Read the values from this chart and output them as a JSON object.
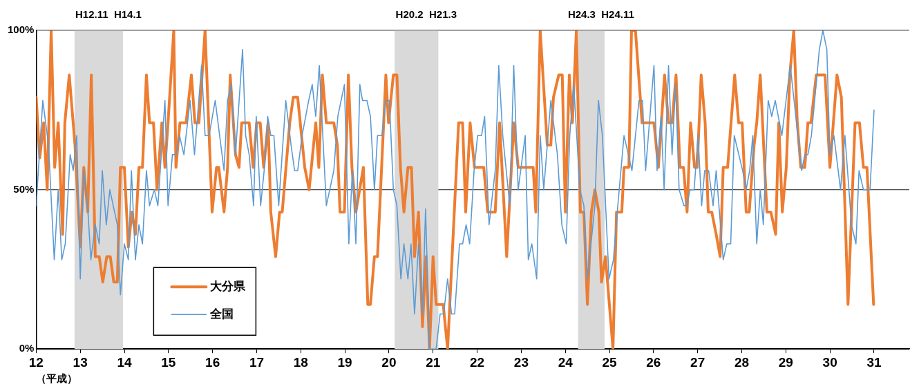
{
  "chart_data": {
    "type": "line",
    "xlabel": "（平成）",
    "xlim": [
      12,
      31.8
    ],
    "xticks": [
      12,
      13,
      14,
      15,
      16,
      17,
      18,
      19,
      20,
      21,
      22,
      23,
      24,
      25,
      26,
      27,
      28,
      29,
      30,
      31
    ],
    "ylim": [
      0,
      100
    ],
    "yticks": [
      {
        "value": 0,
        "label": "0%"
      },
      {
        "value": 50,
        "label": "50%"
      },
      {
        "value": 100,
        "label": "100%"
      }
    ],
    "grid": "y",
    "legend": "bottom left",
    "marker": "none",
    "line_style": "solid",
    "bands": [
      {
        "axis": "x",
        "from": 12.87,
        "to": 13.97,
        "color": "#d9d9d9",
        "label": "H12.11  H14.1"
      },
      {
        "axis": "x",
        "from": 20.13,
        "to": 21.12,
        "color": "#d9d9d9",
        "label": "H20.2  H21.3"
      },
      {
        "axis": "x",
        "from": 24.29,
        "to": 24.89,
        "color": "#d9d9d9",
        "label": "H24.3  H24.11"
      }
    ],
    "series": [
      {
        "name": "大分県",
        "color": "#ed7d31",
        "x": [
          12.0,
          12.08,
          12.17,
          12.25,
          12.34,
          12.42,
          12.5,
          12.6,
          12.65,
          12.75,
          12.88,
          13.0,
          13.08,
          13.17,
          13.25,
          13.34,
          13.43,
          13.51,
          13.6,
          13.68,
          13.76,
          13.84,
          13.91,
          14.0,
          14.09,
          14.17,
          14.25,
          14.33,
          14.41,
          14.5,
          14.57,
          14.66,
          14.74,
          14.85,
          14.92,
          14.99,
          15.12,
          15.17,
          15.26,
          15.4,
          15.52,
          15.6,
          15.69,
          15.83,
          15.99,
          16.09,
          16.14,
          16.26,
          16.34,
          16.4,
          16.52,
          16.6,
          16.66,
          16.83,
          16.92,
          17.0,
          17.08,
          17.16,
          17.26,
          17.32,
          17.43,
          17.52,
          17.58,
          17.75,
          17.83,
          17.93,
          18.09,
          18.19,
          18.34,
          18.41,
          18.49,
          18.58,
          18.75,
          18.83,
          18.89,
          18.99,
          19.08,
          19.16,
          19.25,
          19.42,
          19.52,
          19.58,
          19.67,
          19.74,
          19.93,
          19.99,
          20.1,
          20.18,
          20.26,
          20.34,
          20.43,
          20.51,
          20.58,
          20.67,
          20.76,
          20.84,
          20.92,
          21.0,
          21.07,
          21.23,
          21.33,
          21.58,
          21.67,
          21.74,
          21.84,
          21.94,
          22.15,
          22.24,
          22.41,
          22.51,
          22.67,
          22.83,
          22.93,
          23.27,
          23.33,
          23.43,
          23.59,
          23.67,
          23.73,
          23.85,
          23.93,
          24.0,
          24.09,
          24.16,
          24.25,
          24.34,
          24.42,
          24.5,
          24.59,
          24.67,
          24.76,
          24.82,
          24.91,
          25.08,
          25.16,
          25.28,
          25.33,
          25.44,
          25.5,
          25.59,
          25.74,
          26.01,
          26.11,
          26.25,
          26.34,
          26.42,
          26.51,
          26.6,
          26.68,
          26.76,
          26.84,
          26.93,
          26.99,
          27.08,
          27.17,
          27.24,
          27.32,
          27.42,
          27.51,
          27.58,
          27.68,
          27.84,
          27.93,
          28.01,
          28.1,
          28.17,
          28.28,
          28.34,
          28.42,
          28.57,
          28.66,
          28.77,
          28.84,
          28.92,
          29.01,
          29.09,
          29.18,
          29.26,
          29.34,
          29.43,
          29.5,
          29.57,
          29.69,
          29.89,
          30.0,
          30.16,
          30.26,
          30.41,
          30.57,
          30.67,
          30.76,
          30.84,
          30.99
        ],
        "values": [
          79,
          60,
          71,
          50,
          100,
          57,
          71,
          36,
          71,
          86,
          64,
          32,
          57,
          43,
          86,
          29,
          29,
          21,
          29,
          29,
          21,
          21,
          57,
          57,
          32,
          43,
          36,
          57,
          57,
          86,
          71,
          71,
          50,
          71,
          57,
          71,
          100,
          57,
          71,
          71,
          86,
          71,
          71,
          100,
          43,
          57,
          57,
          43,
          57,
          86,
          61,
          57,
          71,
          71,
          57,
          71,
          71,
          57,
          71,
          43,
          29,
          43,
          43,
          71,
          79,
          79,
          57,
          50,
          71,
          57,
          86,
          71,
          71,
          64,
          43,
          43,
          86,
          57,
          43,
          57,
          14,
          14,
          29,
          29,
          86,
          71,
          86,
          86,
          57,
          43,
          57,
          57,
          29,
          43,
          7,
          29,
          0,
          29,
          14,
          14,
          0,
          71,
          71,
          43,
          71,
          57,
          57,
          43,
          43,
          71,
          29,
          71,
          57,
          57,
          43,
          100,
          64,
          64,
          79,
          86,
          86,
          43,
          86,
          71,
          100,
          43,
          43,
          14,
          43,
          50,
          43,
          21,
          29,
          0,
          43,
          43,
          57,
          57,
          100,
          100,
          71,
          71,
          57,
          86,
          71,
          71,
          86,
          57,
          57,
          43,
          71,
          57,
          57,
          86,
          71,
          43,
          43,
          36,
          29,
          57,
          57,
          86,
          71,
          71,
          43,
          43,
          64,
          71,
          86,
          43,
          43,
          36,
          71,
          43,
          57,
          86,
          100,
          71,
          57,
          57,
          71,
          71,
          86,
          86,
          57,
          86,
          79,
          14,
          71,
          71,
          57,
          57,
          14
        ]
      },
      {
        "name": "全国",
        "color": "#5b9bd5",
        "x": [
          12.0,
          12.15,
          12.28,
          12.41,
          12.5,
          12.58,
          12.66,
          12.77,
          12.84,
          12.92,
          13.0,
          13.08,
          13.17,
          13.24,
          13.34,
          13.43,
          13.5,
          13.59,
          13.67,
          13.84,
          13.91,
          14.0,
          14.09,
          14.16,
          14.25,
          14.33,
          14.41,
          14.5,
          14.57,
          14.68,
          14.76,
          14.92,
          14.99,
          15.09,
          15.17,
          15.25,
          15.35,
          15.49,
          15.59,
          15.75,
          15.83,
          15.92,
          16.06,
          16.26,
          16.34,
          16.42,
          16.52,
          16.68,
          16.75,
          16.83,
          16.93,
          16.99,
          17.09,
          17.17,
          17.25,
          17.32,
          17.39,
          17.5,
          17.66,
          17.78,
          17.86,
          17.93,
          18.03,
          18.18,
          18.26,
          18.34,
          18.42,
          18.5,
          18.58,
          18.75,
          18.84,
          18.99,
          19.09,
          19.17,
          19.25,
          19.34,
          19.4,
          19.5,
          19.58,
          19.67,
          19.74,
          19.84,
          19.93,
          20.01,
          20.1,
          20.18,
          20.27,
          20.34,
          20.43,
          20.5,
          20.58,
          20.67,
          20.76,
          20.83,
          20.92,
          21.07,
          21.16,
          21.24,
          21.33,
          21.42,
          21.49,
          21.6,
          21.67,
          21.75,
          21.83,
          21.93,
          22.01,
          22.1,
          22.17,
          22.27,
          22.36,
          22.41,
          22.49,
          22.58,
          22.74,
          22.83,
          22.93,
          23.09,
          23.16,
          23.24,
          23.35,
          23.43,
          23.51,
          23.67,
          23.82,
          23.92,
          24.02,
          24.1,
          24.19,
          24.33,
          24.42,
          24.5,
          24.67,
          24.75,
          24.84,
          24.99,
          25.09,
          25.19,
          25.33,
          25.51,
          25.67,
          25.75,
          25.82,
          26.01,
          26.08,
          26.17,
          26.24,
          26.34,
          26.42,
          26.5,
          26.58,
          26.69,
          26.75,
          26.83,
          26.92,
          27.01,
          27.09,
          27.16,
          27.25,
          27.35,
          27.42,
          27.58,
          27.66,
          27.75,
          27.83,
          28.02,
          28.1,
          28.18,
          28.25,
          28.34,
          28.42,
          28.49,
          28.6,
          28.68,
          28.76,
          28.91,
          29.1,
          29.36,
          29.43,
          29.5,
          29.58,
          29.76,
          29.84,
          29.93,
          30.0,
          30.09,
          30.24,
          30.34,
          30.49,
          30.59,
          30.66,
          30.76,
          30.91,
          31.0
        ],
        "values": [
          45,
          78,
          64,
          28,
          50,
          28,
          33,
          61,
          56,
          67,
          22,
          56,
          44,
          28,
          39,
          33,
          56,
          39,
          50,
          39,
          17,
          33,
          28,
          56,
          28,
          39,
          33,
          56,
          45,
          50,
          45,
          78,
          45,
          61,
          61,
          67,
          61,
          78,
          61,
          89,
          67,
          67,
          78,
          56,
          78,
          83,
          61,
          94,
          67,
          61,
          45,
          73,
          45,
          56,
          73,
          67,
          67,
          45,
          78,
          64,
          56,
          56,
          67,
          78,
          83,
          73,
          89,
          67,
          45,
          56,
          73,
          83,
          33,
          56,
          33,
          83,
          78,
          78,
          73,
          50,
          67,
          67,
          78,
          78,
          50,
          45,
          22,
          33,
          22,
          33,
          11,
          33,
          11,
          44,
          0,
          0,
          11,
          11,
          22,
          11,
          11,
          33,
          33,
          39,
          33,
          56,
          67,
          67,
          73,
          39,
          50,
          56,
          89,
          67,
          45,
          89,
          50,
          67,
          28,
          33,
          22,
          67,
          50,
          78,
          61,
          39,
          33,
          67,
          83,
          50,
          45,
          22,
          45,
          78,
          67,
          22,
          28,
          45,
          67,
          56,
          78,
          78,
          56,
          89,
          56,
          73,
          50,
          89,
          61,
          83,
          50,
          45,
          45,
          50,
          50,
          67,
          45,
          56,
          56,
          45,
          56,
          28,
          33,
          33,
          67,
          56,
          50,
          56,
          67,
          33,
          50,
          39,
          78,
          73,
          78,
          67,
          89,
          56,
          61,
          61,
          67,
          94,
          100,
          94,
          61,
          67,
          50,
          67,
          39,
          33,
          56,
          50,
          50,
          75
        ]
      }
    ]
  }
}
